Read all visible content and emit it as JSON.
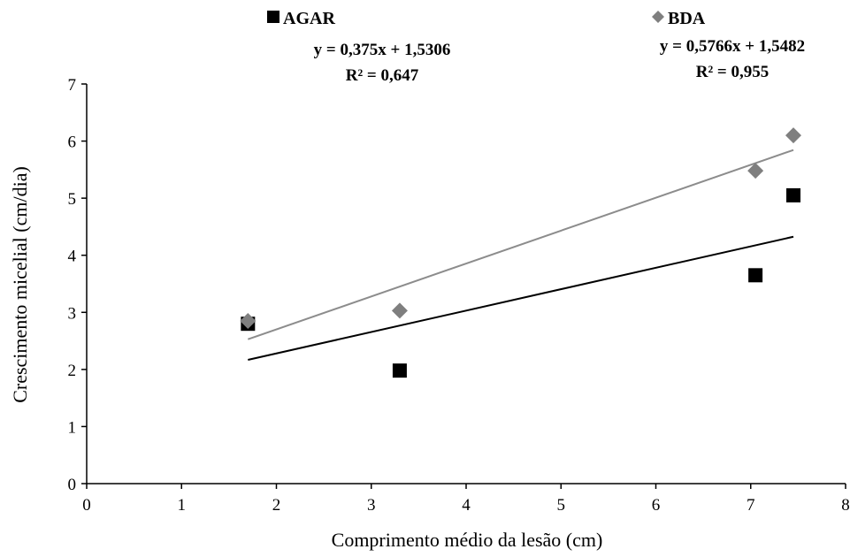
{
  "chart_data": {
    "type": "scatter",
    "xlabel": "Comprimento médio da lesão (cm)",
    "ylabel": "Crescimento micelial (cm/dia)",
    "xlim": [
      0,
      8
    ],
    "ylim": [
      0,
      7
    ],
    "x_ticks": [
      "0",
      "1",
      "2",
      "3",
      "4",
      "5",
      "6",
      "7",
      "8"
    ],
    "y_ticks": [
      "0",
      "1",
      "2",
      "3",
      "4",
      "5",
      "6",
      "7"
    ],
    "grid": false,
    "legend_position": "top",
    "series": [
      {
        "name": "AGAR",
        "marker": "square",
        "color": "#000000",
        "line_color": "#000000",
        "x": [
          1.7,
          3.3,
          7.05,
          7.45
        ],
        "y": [
          2.8,
          1.98,
          3.65,
          5.05
        ],
        "trendline": {
          "slope": 0.375,
          "intercept": 1.5306,
          "x_range": [
            1.7,
            7.45
          ]
        },
        "equation": "y = 0,375x + 1,5306",
        "r2": "R² = 0,647"
      },
      {
        "name": "BDA",
        "marker": "diamond",
        "color": "#7f7f7f",
        "line_color": "#8c8c8c",
        "x": [
          1.7,
          3.3,
          7.05,
          7.45
        ],
        "y": [
          2.85,
          3.03,
          5.48,
          6.1
        ],
        "trendline": {
          "slope": 0.5766,
          "intercept": 1.5482,
          "x_range": [
            1.7,
            7.45
          ]
        },
        "equation": "y = 0,5766x + 1,5482",
        "r2": "R² = 0,955"
      }
    ]
  }
}
